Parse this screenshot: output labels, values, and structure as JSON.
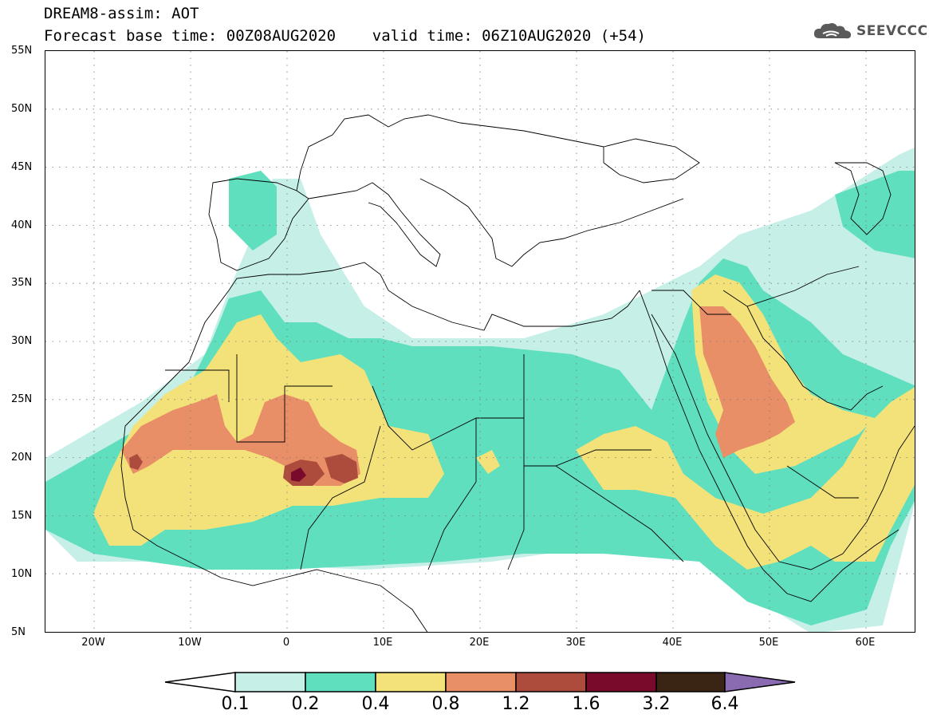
{
  "header": {
    "title_line1": "DREAM8-assim: AOT",
    "title_line2": "Forecast base time: 00Z08AUG2020    valid time: 06Z10AUG2020 (+54)"
  },
  "logo": {
    "text": "SEEVCCC",
    "icon": "cloud-icon"
  },
  "map": {
    "latitude_labels": [
      "55N",
      "50N",
      "45N",
      "40N",
      "35N",
      "30N",
      "25N",
      "20N",
      "15N",
      "10N",
      "5N"
    ],
    "longitude_labels": [
      "20W",
      "10W",
      "0",
      "10E",
      "20E",
      "30E",
      "40E",
      "50E",
      "60E"
    ],
    "lat_range": [
      5,
      55
    ],
    "lon_range": [
      -25,
      65
    ],
    "grid": "dotted"
  },
  "colorbar": {
    "labels": [
      "0.1",
      "0.2",
      "0.4",
      "0.8",
      "1.2",
      "1.6",
      "3.2",
      "6.4"
    ],
    "colors": [
      "#ffffff",
      "#c6efe8",
      "#5fdfbe",
      "#f3e27a",
      "#e98f67",
      "#ad4b3d",
      "#7a0a2b",
      "#3a2414",
      "#8a6ab0"
    ]
  }
}
